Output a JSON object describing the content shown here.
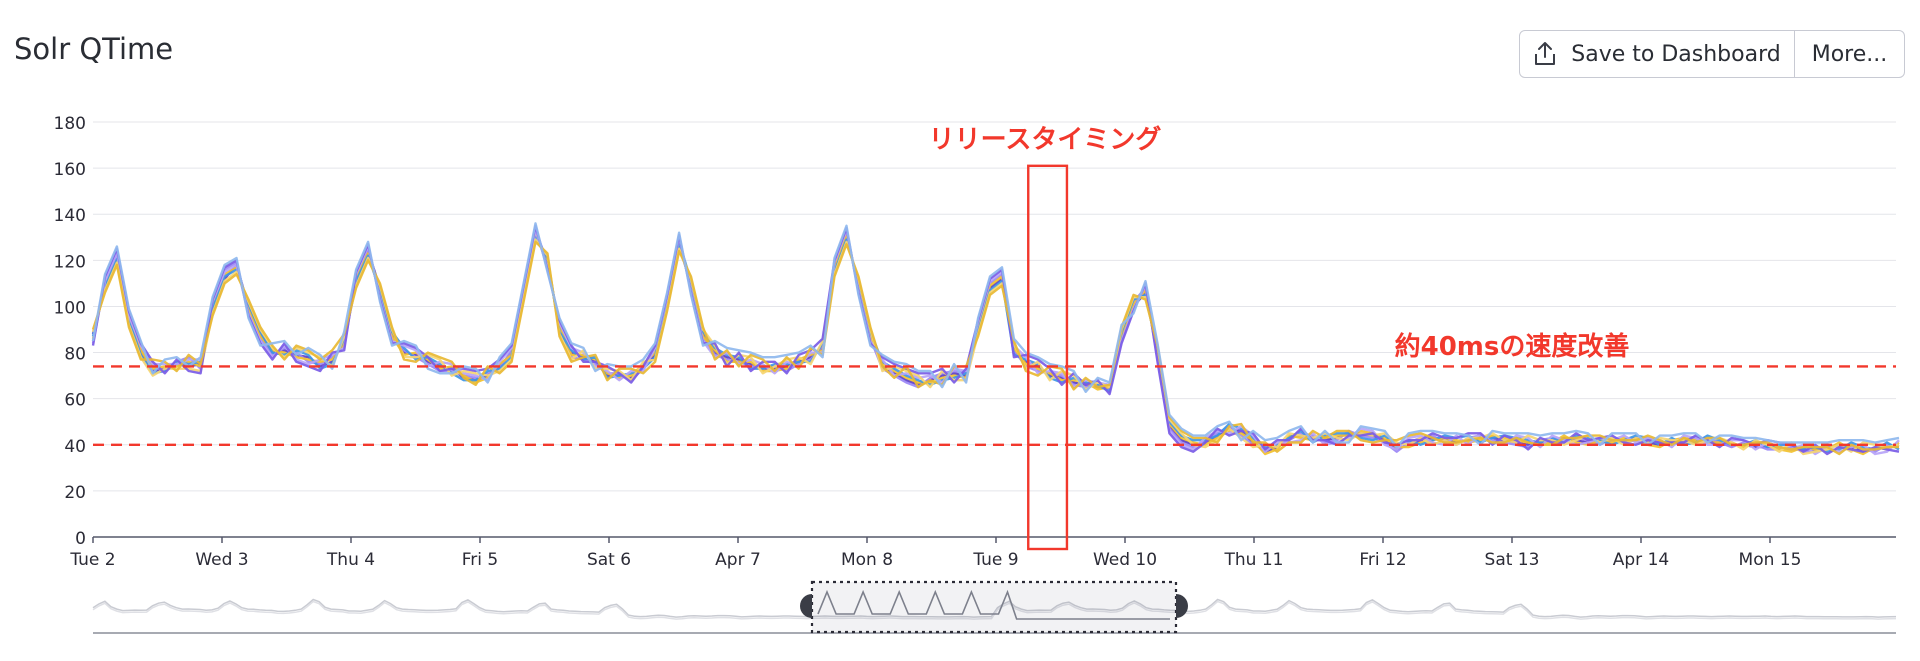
{
  "header": {
    "title": "Solr QTime",
    "save_label": "Save to Dashboard",
    "more_label": "More...",
    "save_icon": "upload-icon"
  },
  "annotations": {
    "release_label": "リリースタイミング",
    "improvement_label": "約40msの速度改善",
    "color": "#f2382c"
  },
  "chart_data": {
    "type": "line",
    "title": "Solr QTime",
    "ylim": [
      0,
      180
    ],
    "yticks": [
      0,
      20,
      40,
      60,
      80,
      100,
      120,
      140,
      160,
      180
    ],
    "x_range_days": [
      0,
      14
    ],
    "xticks": [
      {
        "label": "Tue 2",
        "day": 0
      },
      {
        "label": "Wed 3",
        "day": 1
      },
      {
        "label": "Thu 4",
        "day": 2
      },
      {
        "label": "Fri 5",
        "day": 3
      },
      {
        "label": "Sat 6",
        "day": 4
      },
      {
        "label": "Apr 7",
        "day": 5
      },
      {
        "label": "Mon 8",
        "day": 6
      },
      {
        "label": "Tue 9",
        "day": 7
      },
      {
        "label": "Wed 10",
        "day": 8
      },
      {
        "label": "Thu 11",
        "day": 9
      },
      {
        "label": "Fri 12",
        "day": 10
      },
      {
        "label": "Sat 13",
        "day": 11
      },
      {
        "label": "Apr 14",
        "day": 12
      },
      {
        "label": "Mon 15",
        "day": 13
      }
    ],
    "grid": true,
    "legend": "none",
    "reference_lines": [
      74,
      40
    ],
    "release_window": {
      "from_day": 7.25,
      "to_day": 7.55,
      "ymax": 161
    },
    "series_colors": [
      "#5c3fc4",
      "#9b87f5",
      "#f2c12e",
      "#3e96e6",
      "#b7a4f7",
      "#f5d572",
      "#7a5be6",
      "#e8b833",
      "#8fb8ee"
    ],
    "series_values": [
      [
        88,
        108,
        122,
        93,
        80,
        72,
        73,
        75,
        74,
        75,
        98,
        112,
        118,
        100,
        88,
        80,
        81,
        79,
        78,
        74,
        76,
        85,
        110,
        124,
        108,
        88,
        80,
        79,
        76,
        74,
        73,
        69,
        68,
        70,
        74,
        80,
        104,
        132,
        120,
        90,
        80,
        78,
        76,
        70,
        70,
        69,
        74,
        79,
        100,
        126,
        110,
        88,
        80,
        78,
        77,
        75,
        73,
        73,
        74,
        76,
        78,
        82,
        116,
        130,
        110,
        88,
        74,
        71,
        68,
        66,
        68,
        70,
        71,
        70,
        90,
        108,
        112,
        80,
        76,
        74,
        70,
        69,
        67,
        66,
        65,
        64,
        88,
        100,
        106,
        80,
        48,
        42,
        40,
        41,
        44,
        47,
        46,
        41,
        37,
        39,
        43,
        44,
        43,
        42,
        43,
        45,
        45,
        44,
        42,
        38,
        40,
        42,
        43,
        42,
        41,
        42,
        43,
        43,
        42,
        41,
        40,
        41,
        42,
        43,
        42,
        41,
        41,
        42,
        42,
        43,
        41,
        40,
        41,
        42,
        43,
        42,
        40,
        40,
        40,
        39,
        39,
        39,
        38,
        38,
        38,
        39,
        40,
        39,
        37,
        38,
        39,
        40
      ],
      [
        85,
        112,
        124,
        97,
        82,
        74,
        72,
        76,
        78,
        73,
        101,
        116,
        119,
        98,
        86,
        79,
        82,
        80,
        76,
        75,
        78,
        83,
        113,
        125,
        105,
        86,
        81,
        78,
        75,
        72,
        72,
        70,
        69,
        71,
        73,
        81,
        108,
        134,
        118,
        92,
        78,
        77,
        75,
        71,
        71,
        68,
        73,
        81,
        103,
        129,
        108,
        86,
        79,
        77,
        76,
        74,
        74,
        74,
        72,
        75,
        77,
        83,
        118,
        132,
        108,
        86,
        73,
        70,
        67,
        65,
        69,
        71,
        72,
        71,
        92,
        110,
        114,
        81,
        74,
        72,
        71,
        70,
        66,
        65,
        66,
        64,
        86,
        102,
        108,
        78,
        47,
        41,
        39,
        42,
        45,
        48,
        44,
        40,
        38,
        40,
        42,
        45,
        44,
        41,
        42,
        46,
        44,
        43,
        41,
        37,
        41,
        43,
        44,
        41,
        40,
        43,
        44,
        42,
        41,
        40,
        39,
        42,
        43,
        42,
        43,
        42,
        40,
        43,
        41,
        42,
        42,
        41,
        40,
        41,
        42,
        43,
        41,
        39,
        41,
        40,
        38,
        38,
        39,
        37,
        37,
        40,
        39,
        40,
        38,
        37,
        40,
        39
      ],
      [
        86,
        110,
        120,
        95,
        81,
        73,
        74,
        74,
        76,
        74,
        100,
        114,
        117,
        99,
        87,
        81,
        80,
        78,
        77,
        76,
        77,
        84,
        112,
        123,
        106,
        87,
        79,
        80,
        77,
        73,
        74,
        70,
        67,
        69,
        75,
        79,
        106,
        131,
        119,
        91,
        79,
        79,
        77,
        71,
        69,
        70,
        75,
        80,
        102,
        127,
        109,
        87,
        81,
        76,
        76,
        76,
        72,
        72,
        73,
        77,
        79,
        81,
        117,
        131,
        109,
        87,
        75,
        72,
        69,
        67,
        67,
        69,
        70,
        69,
        91,
        109,
        113,
        82,
        75,
        73,
        71,
        68,
        68,
        67,
        64,
        65,
        87,
        101,
        107,
        79,
        49,
        43,
        41,
        40,
        43,
        46,
        45,
        42,
        36,
        38,
        44,
        43,
        42,
        43,
        44,
        44,
        46,
        45,
        43,
        39,
        39,
        41,
        42,
        43,
        42,
        41,
        42,
        44,
        43,
        42,
        41,
        40,
        41,
        44,
        41,
        40,
        42,
        41,
        43,
        42,
        40,
        39,
        42,
        43,
        42,
        41,
        41,
        41,
        39,
        41,
        40,
        38,
        37,
        39,
        38,
        38,
        41,
        38,
        36,
        39,
        38,
        41
      ],
      [
        87,
        109,
        121,
        94,
        79,
        71,
        72,
        76,
        75,
        76,
        99,
        113,
        116,
        101,
        89,
        80,
        79,
        81,
        79,
        73,
        75,
        86,
        111,
        122,
        107,
        89,
        82,
        77,
        78,
        75,
        71,
        68,
        68,
        72,
        73,
        78,
        105,
        130,
        121,
        89,
        81,
        77,
        78,
        69,
        70,
        71,
        73,
        78,
        101,
        128,
        111,
        89,
        82,
        79,
        78,
        73,
        73,
        75,
        75,
        76,
        76,
        84,
        115,
        129,
        111,
        89,
        76,
        73,
        70,
        68,
        66,
        68,
        69,
        71,
        89,
        107,
        111,
        79,
        77,
        75,
        69,
        67,
        69,
        67,
        66,
        63,
        89,
        103,
        105,
        81,
        50,
        44,
        42,
        42,
        44,
        49,
        47,
        43,
        39,
        40,
        43,
        46,
        41,
        44,
        45,
        45,
        43,
        42,
        44,
        40,
        42,
        40,
        42,
        44,
        43,
        44,
        41,
        43,
        44,
        43,
        42,
        41,
        43,
        41,
        44,
        43,
        42,
        40,
        42,
        44,
        43,
        40,
        43,
        40,
        41,
        44,
        42,
        40,
        40,
        42,
        39,
        40,
        40,
        38,
        39,
        37,
        38,
        41,
        39,
        38,
        41,
        38
      ],
      [
        84,
        111,
        123,
        96,
        83,
        75,
        75,
        75,
        77,
        77,
        102,
        115,
        118,
        97,
        85,
        78,
        83,
        77,
        75,
        77,
        79,
        82,
        114,
        126,
        104,
        85,
        83,
        81,
        74,
        76,
        75,
        71,
        70,
        68,
        76,
        82,
        107,
        133,
        117,
        93,
        82,
        80,
        74,
        72,
        68,
        72,
        72,
        82,
        104,
        130,
        107,
        85,
        78,
        80,
        75,
        77,
        75,
        71,
        76,
        74,
        80,
        80,
        119,
        133,
        107,
        85,
        77,
        70,
        71,
        69,
        70,
        67,
        73,
        72,
        93,
        111,
        115,
        83,
        78,
        71,
        72,
        71,
        65,
        68,
        67,
        66,
        85,
        99,
        109,
        77,
        46,
        40,
        38,
        43,
        46,
        45,
        48,
        44,
        37,
        41,
        41,
        42,
        45,
        40,
        41,
        43,
        47,
        46,
        40,
        38,
        43,
        44,
        41,
        40,
        44,
        40,
        45,
        41,
        40,
        44,
        43,
        39,
        44,
        42,
        40,
        41,
        43,
        42,
        44,
        41,
        43,
        42,
        39,
        44,
        43,
        40,
        40,
        42,
        42,
        38,
        41,
        39,
        38,
        40,
        36,
        39,
        37,
        39,
        40,
        36,
        37,
        42
      ],
      [
        89,
        107,
        119,
        92,
        78,
        70,
        73,
        73,
        73,
        72,
        97,
        111,
        115,
        102,
        90,
        82,
        78,
        82,
        80,
        78,
        74,
        87,
        109,
        121,
        109,
        90,
        78,
        78,
        79,
        77,
        70,
        72,
        71,
        70,
        72,
        77,
        103,
        129,
        122,
        88,
        77,
        81,
        73,
        73,
        72,
        68,
        76,
        77,
        99,
        125,
        112,
        90,
        83,
        75,
        79,
        78,
        71,
        74,
        77,
        78,
        75,
        85,
        114,
        128,
        112,
        90,
        72,
        74,
        72,
        70,
        65,
        72,
        68,
        68,
        88,
        106,
        110,
        84,
        73,
        76,
        68,
        72,
        70,
        64,
        67,
        65,
        90,
        104,
        104,
        82,
        51,
        45,
        40,
        39,
        42,
        47,
        43,
        39,
        40,
        39,
        45,
        44,
        43,
        45,
        43,
        42,
        45,
        44,
        45,
        41,
        40,
        43,
        40,
        42,
        40,
        43,
        43,
        45,
        42,
        41,
        44,
        42,
        42,
        40,
        42,
        44,
        41,
        43,
        40,
        43,
        41,
        43,
        42,
        42,
        40,
        42,
        43,
        41,
        38,
        42,
        40,
        37,
        41,
        36,
        37,
        38,
        40,
        37,
        41,
        40,
        39,
        40
      ],
      [
        83,
        113,
        125,
        98,
        84,
        76,
        71,
        77,
        72,
        71,
        103,
        117,
        120,
        96,
        84,
        77,
        84,
        76,
        74,
        72,
        80,
        81,
        115,
        127,
        103,
        84,
        84,
        82,
        78,
        72,
        73,
        73,
        72,
        73,
        77,
        83,
        109,
        135,
        116,
        94,
        83,
        76,
        76,
        74,
        71,
        67,
        74,
        83,
        105,
        131,
        106,
        84,
        84,
        74,
        80,
        72,
        76,
        76,
        71,
        79,
        81,
        86,
        120,
        134,
        106,
        84,
        78,
        75,
        73,
        71,
        71,
        73,
        67,
        73,
        94,
        112,
        116,
        78,
        79,
        77,
        73,
        66,
        71,
        66,
        68,
        62,
        84,
        98,
        110,
        76,
        45,
        39,
        37,
        41,
        47,
        44,
        46,
        45,
        38,
        42,
        42,
        47,
        42,
        42,
        40,
        44,
        44,
        45,
        41,
        40,
        42,
        42,
        45,
        43,
        43,
        45,
        45,
        40,
        44,
        42,
        38,
        43,
        41,
        41,
        45,
        42,
        43,
        44,
        41,
        40,
        42,
        41,
        41,
        41,
        44,
        42,
        39,
        43,
        42,
        40,
        42,
        41,
        40,
        37,
        40,
        36,
        39,
        38,
        37,
        39,
        38,
        37
      ],
      [
        90,
        106,
        118,
        91,
        77,
        77,
        76,
        72,
        79,
        75,
        96,
        110,
        114,
        103,
        91,
        83,
        77,
        83,
        81,
        77,
        81,
        88,
        108,
        120,
        110,
        91,
        77,
        76,
        80,
        78,
        76,
        69,
        66,
        74,
        71,
        76,
        102,
        128,
        123,
        87,
        76,
        78,
        79,
        68,
        73,
        73,
        71,
        76,
        98,
        124,
        113,
        91,
        77,
        81,
        74,
        79,
        77,
        72,
        78,
        73,
        82,
        79,
        113,
        127,
        113,
        91,
        74,
        69,
        74,
        65,
        68,
        66,
        74,
        74,
        87,
        105,
        109,
        85,
        72,
        70,
        74,
        73,
        64,
        69,
        65,
        66,
        91,
        105,
        103,
        83,
        52,
        46,
        43,
        43,
        41,
        48,
        49,
        41,
        41,
        37,
        41,
        41,
        46,
        43,
        46,
        46,
        42,
        41,
        42,
        42,
        44,
        45,
        43,
        41,
        41,
        42,
        43,
        41,
        41,
        43,
        41,
        40,
        40,
        43,
        43,
        44,
        44,
        42,
        42,
        42,
        44,
        42,
        40,
        43,
        41,
        43,
        43,
        40,
        40,
        41,
        41,
        39,
        38,
        39,
        39,
        39,
        36,
        40,
        38,
        38,
        39,
        39
      ],
      [
        85,
        114,
        126,
        99,
        85,
        71,
        77,
        78,
        74,
        78,
        104,
        118,
        121,
        95,
        83,
        84,
        85,
        79,
        82,
        79,
        73,
        89,
        116,
        128,
        102,
        83,
        85,
        83,
        73,
        71,
        71,
        74,
        73,
        67,
        78,
        84,
        110,
        136,
        115,
        95,
        84,
        82,
        72,
        75,
        74,
        74,
        77,
        84,
        106,
        132,
        105,
        83,
        85,
        82,
        81,
        80,
        78,
        78,
        79,
        80,
        83,
        78,
        121,
        135,
        105,
        83,
        79,
        76,
        75,
        72,
        72,
        65,
        75,
        67,
        95,
        113,
        117,
        86,
        80,
        78,
        75,
        74,
        72,
        63,
        69,
        67,
        92,
        97,
        111,
        84,
        53,
        47,
        44,
        44,
        48,
        50,
        42,
        46,
        42,
        43,
        46,
        48,
        41,
        46,
        41,
        41,
        48,
        47,
        46,
        39,
        45,
        46,
        46,
        45,
        45,
        44,
        40,
        46,
        45,
        45,
        45,
        44,
        45,
        45,
        46,
        45,
        40,
        45,
        45,
        45,
        40,
        44,
        44,
        45,
        45,
        41,
        44,
        44,
        43,
        43,
        42,
        41,
        41,
        41,
        41,
        41,
        42,
        42,
        42,
        41,
        42,
        43
      ]
    ]
  }
}
